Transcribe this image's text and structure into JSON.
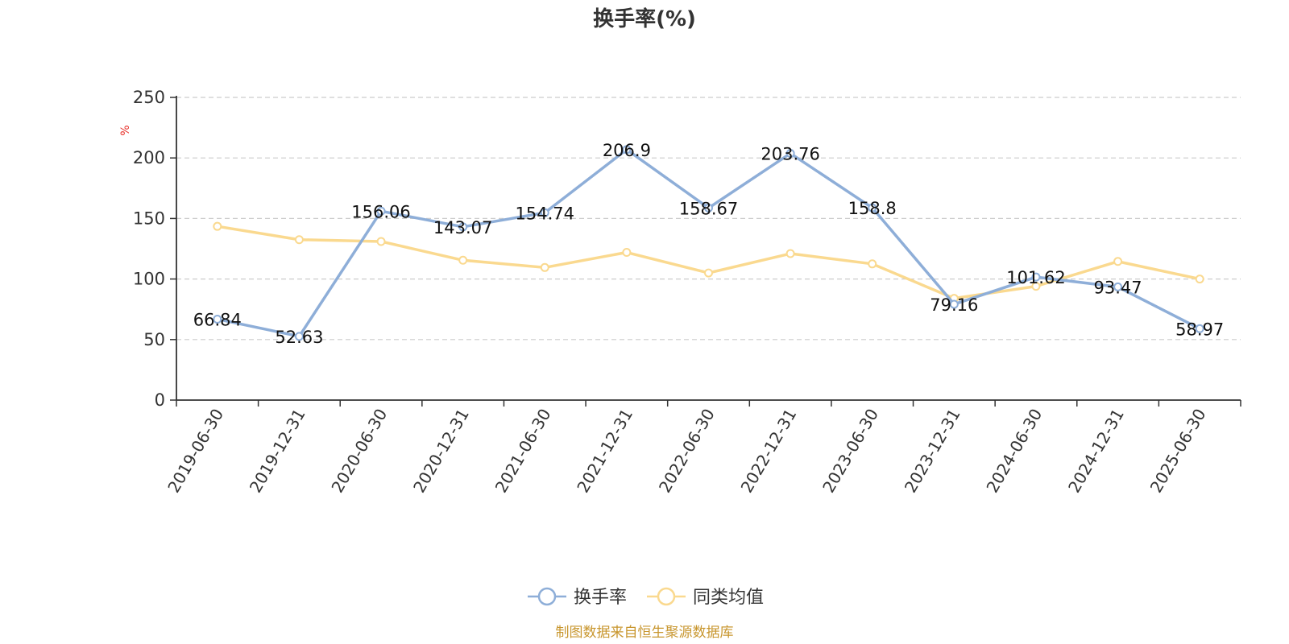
{
  "chart_data": {
    "type": "line",
    "title": "换手率(%)",
    "ylabel": "%",
    "ylim": [
      0,
      250
    ],
    "yticks": [
      0,
      50,
      100,
      150,
      200,
      250
    ],
    "grid": true,
    "legend_position": "bottom-center",
    "categories": [
      "2019-06-30",
      "2019-12-31",
      "2020-06-30",
      "2020-12-31",
      "2021-06-30",
      "2021-12-31",
      "2022-06-30",
      "2022-12-31",
      "2023-06-30",
      "2023-12-31",
      "2024-06-30",
      "2024-12-31",
      "2025-06-30"
    ],
    "series": [
      {
        "name": "换手率",
        "color": "#8eaed8",
        "values": [
          66.84,
          52.63,
          156.06,
          143.07,
          154.74,
          206.9,
          158.67,
          203.76,
          158.8,
          79.16,
          101.62,
          93.47,
          58.97
        ],
        "show_labels": true
      },
      {
        "name": "同类均值",
        "color": "#fad98f",
        "values": [
          143.5,
          132.5,
          131,
          115.5,
          109.5,
          122,
          105,
          121,
          112.5,
          84,
          94,
          114.5,
          100
        ],
        "show_labels": false
      }
    ]
  },
  "source_note": "制图数据来自恒生聚源数据库",
  "colors": {
    "unit": "#e8312a",
    "source": "#c8962e",
    "axis": "#333333",
    "grid": "#cccccc"
  }
}
